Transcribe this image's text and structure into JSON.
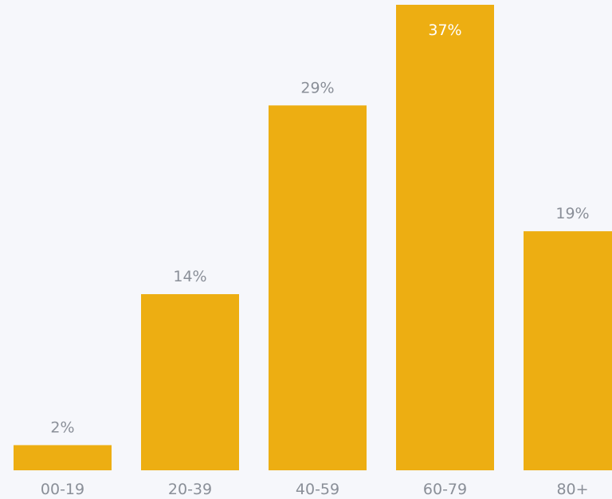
{
  "chart_data": {
    "type": "bar",
    "categories": [
      "00-19",
      "20-39",
      "40-59",
      "60-79",
      "80+"
    ],
    "values": [
      2,
      14,
      29,
      37,
      19
    ],
    "value_labels": [
      "2%",
      "14%",
      "29%",
      "37%",
      "19%"
    ],
    "unit": "%",
    "ylim": [
      0,
      37
    ],
    "grid": false,
    "legend": "none",
    "colors": {
      "bar": "#edae12",
      "background": "#f6f7fb",
      "label": "#8a8f98",
      "label_inside": "#ffffff"
    }
  }
}
